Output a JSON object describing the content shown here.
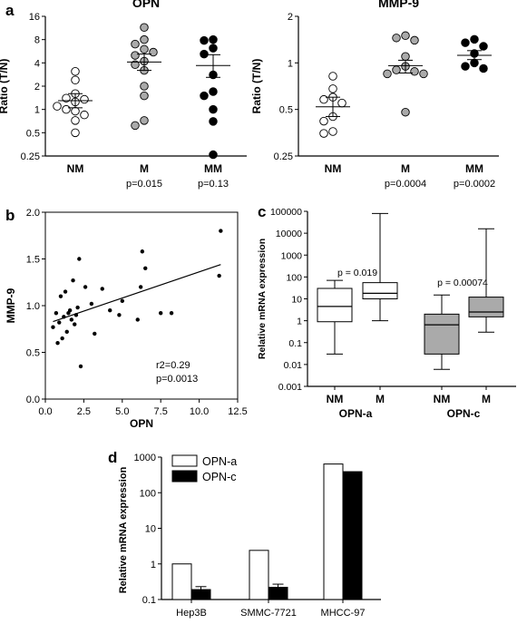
{
  "panels": {
    "a": "a",
    "b": "b",
    "c": "c",
    "d": "d"
  },
  "chart_data": [
    {
      "id": "a-opn",
      "type": "scatter",
      "title": "OPN",
      "ylabel": "Ratio (T/N)",
      "yscale": "log2",
      "ylim": [
        0.25,
        16
      ],
      "yticks": [
        "0.25",
        "0.5",
        "1",
        "2",
        "4",
        "8",
        "16"
      ],
      "categories": [
        "NM",
        "M",
        "MM"
      ],
      "pvalues": [
        "",
        "p=0.015",
        "p=0.13"
      ],
      "fills": [
        "#ffffff",
        "#aaaaaa",
        "#000000"
      ],
      "groups": [
        {
          "name": "NM",
          "values": [
            3.1,
            2.4,
            1.6,
            1.4,
            1.35,
            1.25,
            1.1,
            1.0,
            0.95,
            0.85,
            0.72,
            0.5
          ],
          "mean": 1.3,
          "sem_low": 1.05,
          "sem_high": 1.6
        },
        {
          "name": "M",
          "values": [
            11.5,
            8.0,
            7.0,
            6.0,
            5.5,
            5.0,
            4.2,
            3.8,
            3.2,
            2.0,
            1.5,
            0.72,
            0.62
          ],
          "mean": 4.1,
          "sem_low": 3.2,
          "sem_high": 5.2
        },
        {
          "name": "MM",
          "values": [
            8.0,
            7.8,
            6.2,
            5.2,
            2.8,
            1.7,
            1.5,
            1.0,
            0.7,
            0.26
          ],
          "mean": 3.7,
          "sem_low": 2.6,
          "sem_high": 5.1
        }
      ]
    },
    {
      "id": "a-mmp9",
      "type": "scatter",
      "title": "MMP-9",
      "ylabel": "Ratio (T/N)",
      "yscale": "log2",
      "ylim": [
        0.25,
        2
      ],
      "yticks": [
        "0.25",
        "0.5",
        "1",
        "2"
      ],
      "categories": [
        "NM",
        "M",
        "MM"
      ],
      "pvalues": [
        "",
        "p=0.0004",
        "p=0.0002"
      ],
      "fills": [
        "#ffffff",
        "#aaaaaa",
        "#000000"
      ],
      "groups": [
        {
          "name": "NM",
          "values": [
            0.82,
            0.68,
            0.6,
            0.58,
            0.55,
            0.45,
            0.42,
            0.36,
            0.35
          ],
          "mean": 0.52,
          "sem_low": 0.45,
          "sem_high": 0.6
        },
        {
          "name": "M",
          "values": [
            1.5,
            1.45,
            1.4,
            1.1,
            0.95,
            0.9,
            0.88,
            0.85,
            0.85,
            0.48
          ],
          "mean": 0.96,
          "sem_low": 0.86,
          "sem_high": 1.04
        },
        {
          "name": "MM",
          "values": [
            1.42,
            1.35,
            1.28,
            1.15,
            1.0,
            0.95,
            0.92
          ],
          "mean": 1.12,
          "sem_low": 1.05,
          "sem_high": 1.2
        }
      ]
    },
    {
      "id": "b",
      "type": "scatter",
      "xlabel": "OPN",
      "ylabel": "MMP-9",
      "xlim": [
        0,
        12.5
      ],
      "ylim": [
        0,
        2.0
      ],
      "xticks": [
        "0.0",
        "2.5",
        "5.0",
        "7.5",
        "10.0",
        "12.5"
      ],
      "yticks": [
        "0.0",
        "0.5",
        "1.0",
        "1.5",
        "2.0"
      ],
      "points": [
        [
          0.5,
          0.77
        ],
        [
          0.7,
          0.92
        ],
        [
          0.8,
          0.6
        ],
        [
          0.9,
          0.82
        ],
        [
          1.0,
          1.1
        ],
        [
          1.1,
          0.65
        ],
        [
          1.2,
          0.88
        ],
        [
          1.3,
          1.15
        ],
        [
          1.4,
          0.72
        ],
        [
          1.5,
          0.92
        ],
        [
          1.6,
          0.95
        ],
        [
          1.7,
          0.85
        ],
        [
          1.8,
          1.27
        ],
        [
          1.9,
          0.8
        ],
        [
          2.0,
          0.9
        ],
        [
          2.1,
          0.98
        ],
        [
          2.2,
          1.5
        ],
        [
          2.3,
          0.35
        ],
        [
          2.6,
          1.2
        ],
        [
          3.0,
          1.02
        ],
        [
          3.2,
          0.7
        ],
        [
          3.7,
          1.18
        ],
        [
          4.2,
          0.95
        ],
        [
          4.8,
          0.9
        ],
        [
          5.0,
          1.05
        ],
        [
          6.0,
          0.85
        ],
        [
          6.2,
          1.2
        ],
        [
          6.3,
          1.58
        ],
        [
          6.5,
          1.4
        ],
        [
          7.5,
          0.92
        ],
        [
          8.2,
          0.92
        ],
        [
          11.3,
          1.32
        ],
        [
          11.4,
          1.8
        ]
      ],
      "regression": {
        "x": [
          0.5,
          11.4
        ],
        "y": [
          0.83,
          1.44
        ]
      },
      "annotations": [
        "r2=0.29",
        "p=0.0013"
      ]
    },
    {
      "id": "c",
      "type": "box",
      "ylabel": "Relative mRNA expression",
      "yscale": "log10",
      "ylim": [
        0.001,
        100000
      ],
      "yticks": [
        "0.001",
        "0.01",
        "0.1",
        "1",
        "10",
        "100",
        "1000",
        "10000",
        "100000"
      ],
      "categories": [
        "NM",
        "M",
        "NM",
        "M"
      ],
      "group_labels": [
        "OPN-a",
        "OPN-c"
      ],
      "pvalues": [
        "p = 0.019",
        "p = 0.00074"
      ],
      "fills": [
        "#ffffff",
        "#ffffff",
        "#aaaaaa",
        "#aaaaaa"
      ],
      "boxes": [
        {
          "min": 0.03,
          "q1": 0.9,
          "median": 4.5,
          "q3": 30,
          "max": 70
        },
        {
          "min": 1.0,
          "q1": 10,
          "median": 18,
          "q3": 55,
          "max": 80000
        },
        {
          "min": 0.006,
          "q1": 0.03,
          "median": 0.65,
          "q3": 2.0,
          "max": 15
        },
        {
          "min": 0.3,
          "q1": 1.5,
          "median": 2.5,
          "q3": 12,
          "max": 16000
        }
      ]
    },
    {
      "id": "d",
      "type": "bar",
      "ylabel": "Relative mRNA expression",
      "yscale": "log10",
      "ylim": [
        0.1,
        1000
      ],
      "yticks": [
        "0.1",
        "1",
        "10",
        "100",
        "1000"
      ],
      "categories": [
        "Hep3B",
        "SMMC-7721",
        "MHCC-97"
      ],
      "series": [
        {
          "name": "OPN-a",
          "color": "#ffffff",
          "values": [
            1.0,
            2.4,
            640
          ],
          "err": [
            0,
            0,
            0
          ]
        },
        {
          "name": "OPN-c",
          "color": "#000000",
          "values": [
            0.19,
            0.22,
            390
          ],
          "err": [
            0.04,
            0.05,
            0
          ]
        }
      ],
      "legend": "top-left"
    }
  ]
}
